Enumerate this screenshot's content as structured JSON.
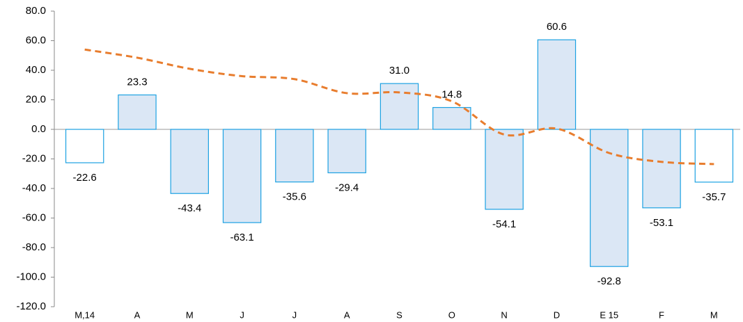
{
  "chart_data": {
    "type": "bar",
    "categories": [
      "M,14",
      "A",
      "M",
      "J",
      "J",
      "A",
      "S",
      "O",
      "N",
      "D",
      "E 15",
      "F",
      "M"
    ],
    "series": [
      {
        "type": "bar",
        "values": [
          -22.6,
          23.3,
          -43.4,
          -63.1,
          -35.6,
          -29.4,
          31.0,
          14.8,
          -54.1,
          60.6,
          -92.8,
          -53.1,
          -35.7
        ],
        "value_labels": [
          "-22.6",
          "23.3",
          "-43.4",
          "-63.1",
          "-35.6",
          "-29.4",
          "31.0",
          "14.8",
          "-54.1",
          "60.6",
          "-92.8",
          "-53.1",
          "-35.7"
        ],
        "stroke": "#1ba1e2",
        "colors": [
          "#ffffff",
          "#dbe7f5",
          "#dbe7f5",
          "#dbe7f5",
          "#dbe7f5",
          "#dbe7f5",
          "#dbe7f5",
          "#dbe7f5",
          "#dbe7f5",
          "#dbe7f5",
          "#dbe7f5",
          "#dbe7f5",
          "#ffffff"
        ]
      },
      {
        "type": "line",
        "values": [
          54,
          48.5,
          41,
          36,
          34,
          24.5,
          25,
          19,
          -3.5,
          0.5,
          -16,
          -22,
          -23.5
        ],
        "color": "#e87d2e",
        "dashed": true
      }
    ],
    "ylim": [
      -120,
      80
    ],
    "yticks": [
      {
        "value": -120,
        "label": "-120.0"
      },
      {
        "value": -100,
        "label": "-100.0"
      },
      {
        "value": -80,
        "label": "-80.0"
      },
      {
        "value": -60,
        "label": "-60.0"
      },
      {
        "value": -40,
        "label": "-40.0"
      },
      {
        "value": -20,
        "label": "-20.0"
      },
      {
        "value": 0,
        "label": "0.0"
      },
      {
        "value": 20,
        "label": "20.0"
      },
      {
        "value": 40,
        "label": "40.0"
      },
      {
        "value": 60,
        "label": "60.0"
      },
      {
        "value": 80,
        "label": "80.0"
      }
    ]
  }
}
